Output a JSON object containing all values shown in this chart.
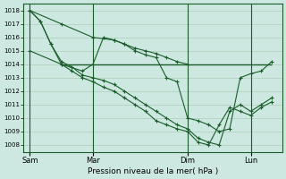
{
  "xlabel": "Pression niveau de la mer( hPa )",
  "bg_color": "#cce8e0",
  "plot_bg_color": "#cce8e0",
  "line_color": "#1a5c2a",
  "grid_color": "#b0ccb8",
  "ylim": [
    1007.5,
    1018.5
  ],
  "yticks": [
    1008,
    1009,
    1010,
    1011,
    1012,
    1013,
    1014,
    1015,
    1016,
    1017,
    1018
  ],
  "xtick_labels": [
    "Sam",
    "Mar",
    "Dim",
    "Lun"
  ],
  "xtick_positions": [
    0.0,
    3.0,
    7.5,
    10.5
  ],
  "xlim": [
    -0.3,
    12.0
  ],
  "line1_x": [
    0,
    1.5,
    3.0,
    4.0,
    4.5,
    5.0,
    5.5,
    6.0,
    6.5,
    7.0,
    7.5
  ],
  "line1_y": [
    1018,
    1017,
    1016,
    1015.8,
    1015.5,
    1015.2,
    1015.0,
    1014.8,
    1014.5,
    1014.2,
    1014.0
  ],
  "line2_x": [
    0,
    1.5,
    2.5,
    3.0,
    3.5,
    4.0,
    4.5,
    5.0,
    5.5,
    6.0,
    6.5,
    7.0,
    7.5,
    8.0,
    8.5,
    9.0,
    9.5,
    10.0,
    10.5,
    11.0,
    11.5
  ],
  "line2_y": [
    1015,
    1014,
    1013.5,
    1014,
    1016,
    1015.8,
    1015.5,
    1015.0,
    1014.7,
    1014.5,
    1013.0,
    1012.7,
    1010.0,
    1009.8,
    1009.5,
    1009.0,
    1009.2,
    1013.0,
    1013.3,
    1013.5,
    1014.2
  ],
  "line3_x": [
    0,
    0.5,
    1.0,
    1.5,
    2.0,
    2.5,
    3.0,
    3.5,
    4.0,
    4.5,
    5.0,
    5.5,
    6.0,
    6.5,
    7.0,
    7.5,
    8.0,
    8.5,
    9.0,
    9.5,
    10.0,
    10.5,
    11.0,
    11.5
  ],
  "line3_y": [
    1018,
    1017.2,
    1015.5,
    1014.2,
    1013.8,
    1013.2,
    1013.0,
    1012.8,
    1012.5,
    1012.0,
    1011.5,
    1011.0,
    1010.5,
    1010.0,
    1009.5,
    1009.2,
    1008.5,
    1008.2,
    1008.0,
    1010.5,
    1011.0,
    1010.5,
    1011.0,
    1011.5
  ],
  "line4_x": [
    0,
    0.5,
    1.0,
    1.5,
    2.0,
    2.5,
    3.0,
    3.5,
    4.0,
    4.5,
    5.0,
    5.5,
    6.0,
    6.5,
    7.0,
    7.5,
    8.0,
    8.5,
    9.0,
    9.5,
    10.0,
    10.5,
    11.0,
    11.5
  ],
  "line4_y": [
    1018,
    1017.2,
    1015.5,
    1014.0,
    1013.5,
    1013.0,
    1012.7,
    1012.3,
    1012.0,
    1011.5,
    1011.0,
    1010.5,
    1009.8,
    1009.5,
    1009.2,
    1009.0,
    1008.2,
    1008.0,
    1009.5,
    1010.8,
    1010.5,
    1010.2,
    1010.8,
    1011.2
  ],
  "hline_y": 1014.0,
  "hline_x_start": 1.5,
  "hline_x_end": 11.5
}
